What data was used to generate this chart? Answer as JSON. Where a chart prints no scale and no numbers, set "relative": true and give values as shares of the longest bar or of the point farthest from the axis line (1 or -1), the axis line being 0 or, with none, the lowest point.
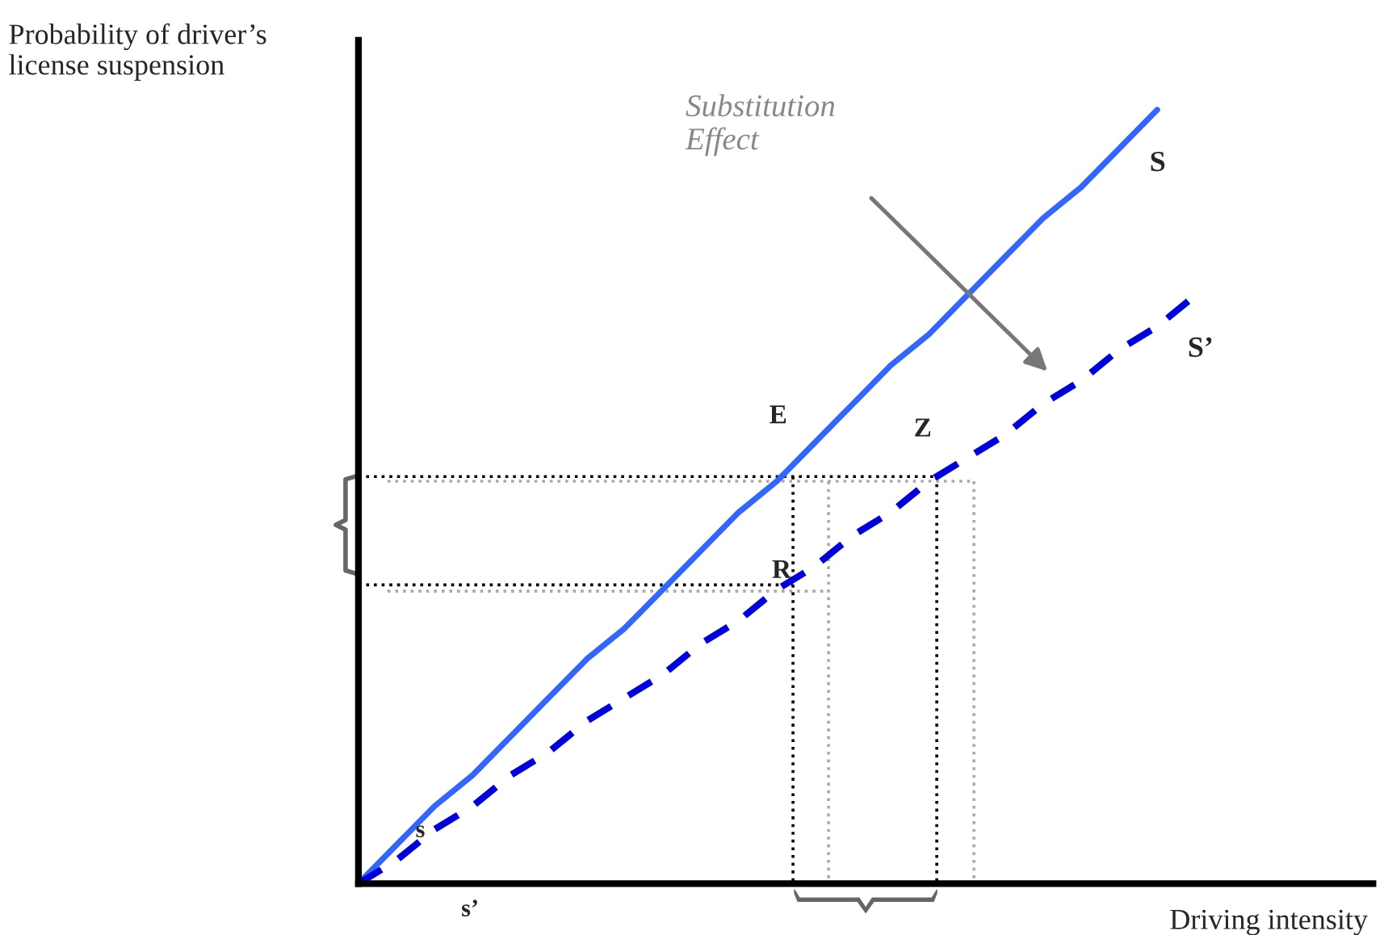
{
  "chart_data": {
    "type": "line",
    "relative": true,
    "xlabel": "Driving intensity",
    "ylabel": "Probability of driver’s\nlicense suspension",
    "categories": [
      null,
      null,
      null,
      null,
      null,
      null,
      null,
      null,
      null,
      null,
      null,
      null,
      null,
      null,
      null,
      null,
      null,
      null,
      null,
      null,
      null,
      null,
      null
    ],
    "series": [
      {
        "name": "S",
        "color": "#3366ff",
        "line_style": "solid",
        "values": [
          0,
          0.05,
          0.1,
          0.14,
          0.19,
          0.24,
          0.29,
          0.33,
          0.38,
          0.43,
          0.48,
          0.52,
          0.57,
          0.62,
          0.67,
          0.71,
          0.76,
          0.81,
          0.86,
          0.9,
          0.95,
          1,
          null
        ]
      },
      {
        "name": "S’",
        "color": "#0000dd",
        "line_style": "dashed",
        "values": [
          0,
          0.03,
          0.07,
          0.1,
          0.14,
          0.17,
          0.21,
          0.24,
          0.27,
          0.31,
          0.34,
          0.38,
          0.41,
          0.45,
          0.48,
          0.52,
          0.55,
          0.58,
          0.62,
          0.65,
          0.69,
          0.72,
          0.76
        ]
      }
    ],
    "annotations": [
      "Substitution\nEffect",
      "E",
      "Z",
      "R",
      "s",
      "s’"
    ],
    "ref_lines": [
      {
        "axis": "y",
        "value": 0.526,
        "color": "#000000",
        "line_style": "dotted"
      },
      {
        "axis": "y",
        "value": 0.386,
        "color": "#000000",
        "line_style": "dotted"
      },
      {
        "axis": "y",
        "value": 0.52,
        "color": "#aaaaaa",
        "line_style": "dotted"
      },
      {
        "axis": "y",
        "value": 0.378,
        "color": "#aaaaaa",
        "line_style": "dotted"
      }
    ],
    "legend": false,
    "marker": "none"
  }
}
